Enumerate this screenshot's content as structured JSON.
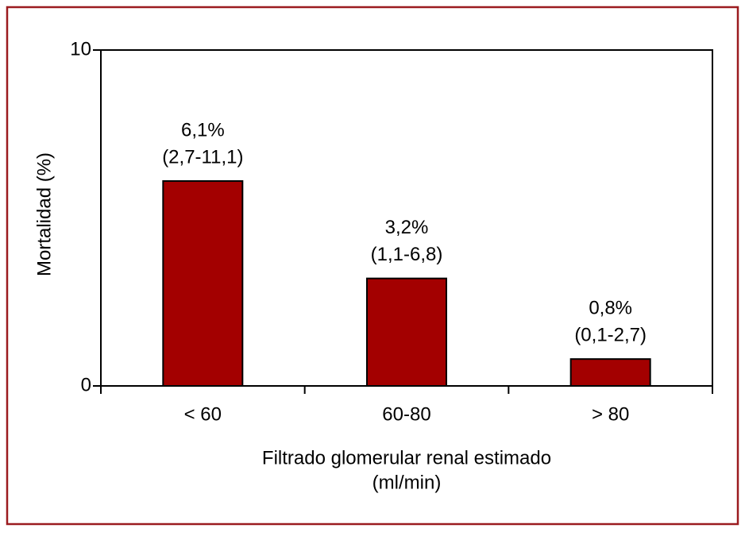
{
  "chart_data": {
    "type": "bar",
    "categories": [
      "< 60",
      "60-80",
      "> 80"
    ],
    "values": [
      6.1,
      3.2,
      0.8
    ],
    "value_labels": [
      "6,1%",
      "3,2%",
      "0,8%"
    ],
    "interval_labels": [
      "(2,7-11,1)",
      "(1,1-6,8)",
      "(0,1-2,7)"
    ],
    "color": "#a30000",
    "y_label": "Mortalidad (%)",
    "x_label": [
      "Filtrado glomerular renal estimado",
      "(ml/min)"
    ],
    "ylim": [
      0,
      10
    ],
    "yticks": [
      0,
      10
    ],
    "grid": false
  }
}
